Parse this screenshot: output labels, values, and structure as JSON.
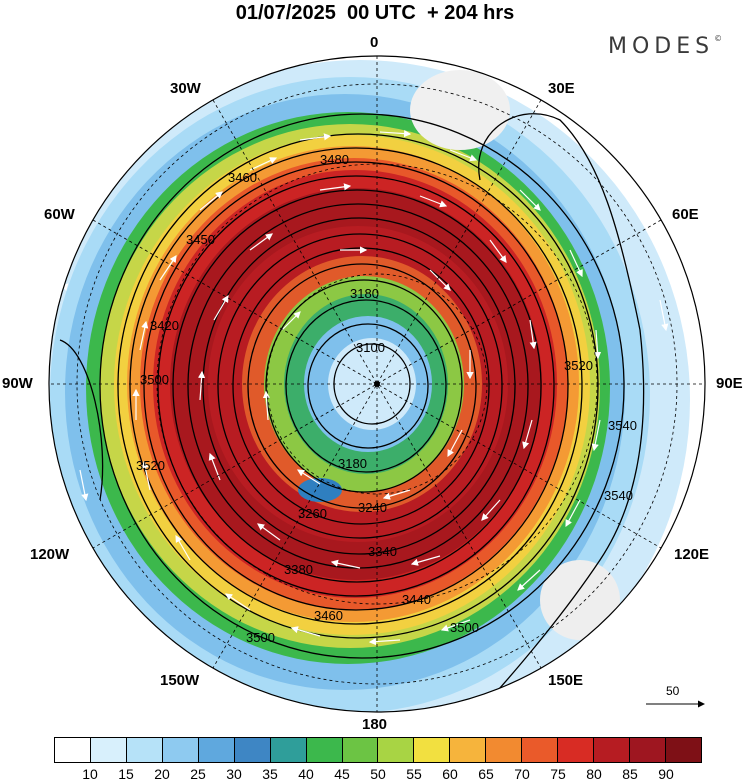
{
  "title": "01/07/2025  00 UTC  + 204 hrs",
  "brand": "MODES",
  "brand_mark": "©",
  "longitude_labels": {
    "top": "0",
    "bottom": "180",
    "left": "90W",
    "right": "90E",
    "w30": "30W",
    "e30": "30E",
    "w60": "60W",
    "e60": "60E",
    "w120": "120W",
    "e120": "120E",
    "w150": "150W",
    "e150": "150E"
  },
  "vector_reference": "50",
  "contour_labels": [
    "3100",
    "3180",
    "3180",
    "3260",
    "3240",
    "3340",
    "3380",
    "3440",
    "3460",
    "3500",
    "3500",
    "3520",
    "3520",
    "3540",
    "3540",
    "3480",
    "3460",
    "3420",
    "3450",
    "3500"
  ],
  "colorbar": {
    "colors": [
      "#ffffff",
      "#d8f0fc",
      "#b6e2f8",
      "#8ecaf0",
      "#5fa8de",
      "#3e86c4",
      "#2f9e9a",
      "#3cb84c",
      "#6cc444",
      "#a8d444",
      "#f2e040",
      "#f6b43c",
      "#f28a30",
      "#ea5a2a",
      "#d82c24",
      "#b61c22",
      "#9e1620",
      "#7e1016"
    ],
    "labels": [
      "10",
      "15",
      "20",
      "25",
      "30",
      "35",
      "40",
      "45",
      "50",
      "55",
      "60",
      "65",
      "70",
      "75",
      "80",
      "85",
      "90"
    ]
  }
}
